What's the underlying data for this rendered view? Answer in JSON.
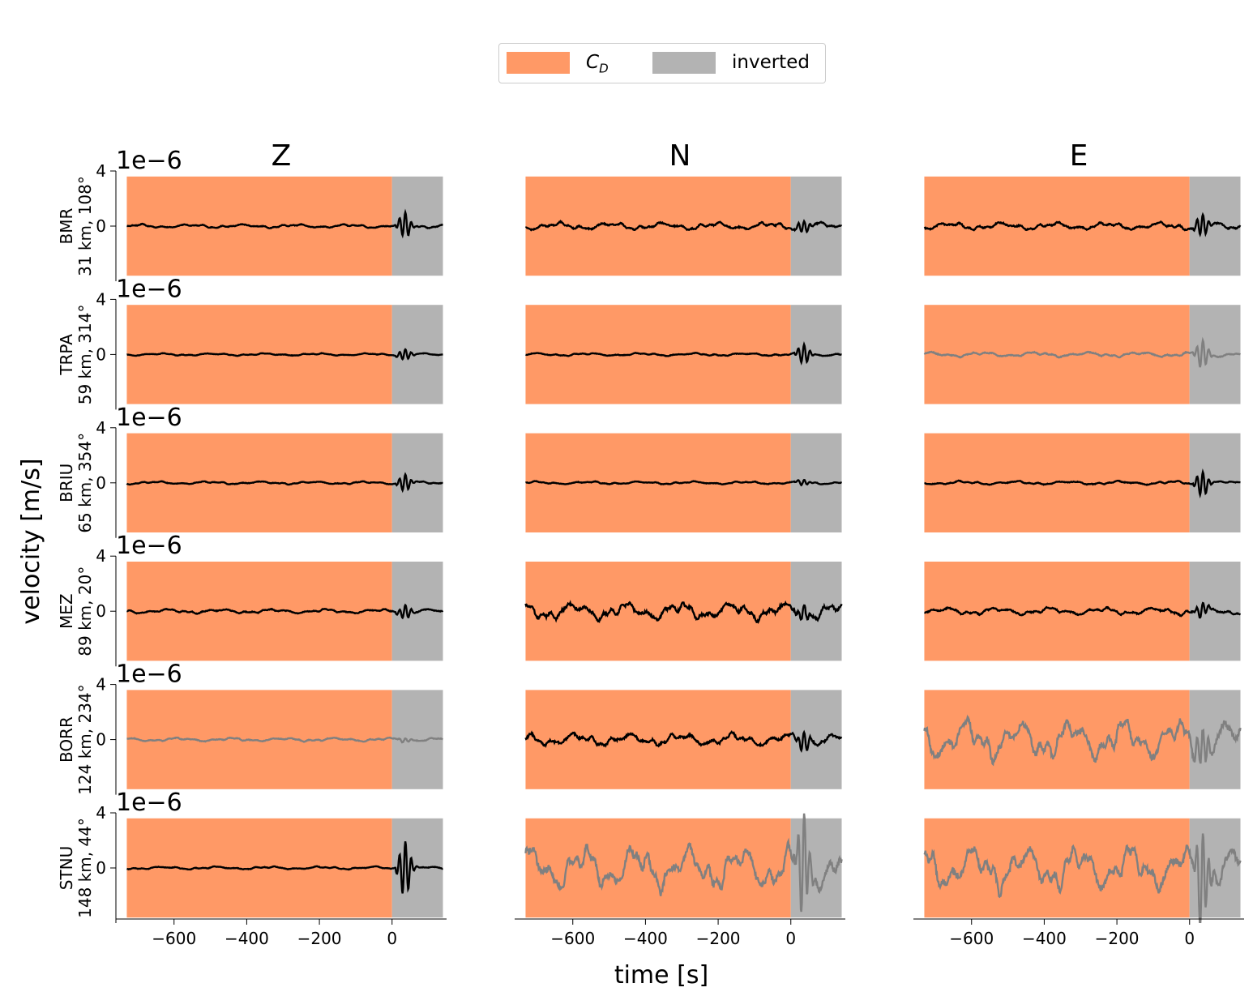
{
  "chart_data": {
    "type": "line",
    "description_label": "seismic velocity waveforms",
    "legend": [
      {
        "label_main": "C",
        "label_sub": "D",
        "color": "#ff9966"
      },
      {
        "label": "inverted",
        "color": "#b3b3b3"
      }
    ],
    "components": [
      "Z",
      "N",
      "E"
    ],
    "stations": [
      {
        "name": "BMR",
        "info": "31 km, 108°"
      },
      {
        "name": "TRPA",
        "info": "59 km, 314°"
      },
      {
        "name": "BRIU",
        "info": "65 km, 354°"
      },
      {
        "name": "MEZ",
        "info": "89 km, 20°"
      },
      {
        "name": "BORR",
        "info": "124 km, 234°"
      },
      {
        "name": "STNU",
        "info": "148 km, 44°"
      }
    ],
    "ylabel": "velocity [m/s]",
    "xlabel": "time [s]",
    "y_scale_label": "1e−6",
    "y_ticks": [
      0,
      4
    ],
    "ylim": [
      -4,
      4
    ],
    "x_ticks": [
      -600,
      -400,
      -200,
      0
    ],
    "xlim": [
      -760,
      150
    ],
    "noise_window_s": [
      -730,
      0
    ],
    "inverted_window_s": [
      0,
      140
    ],
    "series_color_key": {
      "black": "#000000",
      "gray": "#808080"
    },
    "traces": [
      [
        {
          "color": "black",
          "noise_amp": 0.15,
          "signal_amp": 0.9
        },
        {
          "color": "black",
          "noise_amp": 0.3,
          "signal_amp": 0.45
        },
        {
          "color": "black",
          "noise_amp": 0.3,
          "signal_amp": 0.8
        }
      ],
      [
        {
          "color": "black",
          "noise_amp": 0.1,
          "signal_amp": 0.4
        },
        {
          "color": "black",
          "noise_amp": 0.12,
          "signal_amp": 0.7
        },
        {
          "color": "gray",
          "noise_amp": 0.2,
          "signal_amp": 1.0
        }
      ],
      [
        {
          "color": "black",
          "noise_amp": 0.12,
          "signal_amp": 0.6
        },
        {
          "color": "black",
          "noise_amp": 0.12,
          "signal_amp": 0.2
        },
        {
          "color": "black",
          "noise_amp": 0.15,
          "signal_amp": 0.9
        }
      ],
      [
        {
          "color": "black",
          "noise_amp": 0.18,
          "signal_amp": 0.5
        },
        {
          "color": "black",
          "noise_amp": 0.7,
          "signal_amp": 0.5
        },
        {
          "color": "black",
          "noise_amp": 0.3,
          "signal_amp": 0.5
        }
      ],
      [
        {
          "color": "gray",
          "noise_amp": 0.15,
          "signal_amp": 0.15
        },
        {
          "color": "black",
          "noise_amp": 0.5,
          "signal_amp": 0.7
        },
        {
          "color": "gray",
          "noise_amp": 1.6,
          "signal_amp": 1.5
        }
      ],
      [
        {
          "color": "black",
          "noise_amp": 0.12,
          "signal_amp": 2.0
        },
        {
          "color": "gray",
          "noise_amp": 1.8,
          "signal_amp": 3.5
        },
        {
          "color": "gray",
          "noise_amp": 1.8,
          "signal_amp": 3.5
        }
      ]
    ]
  }
}
